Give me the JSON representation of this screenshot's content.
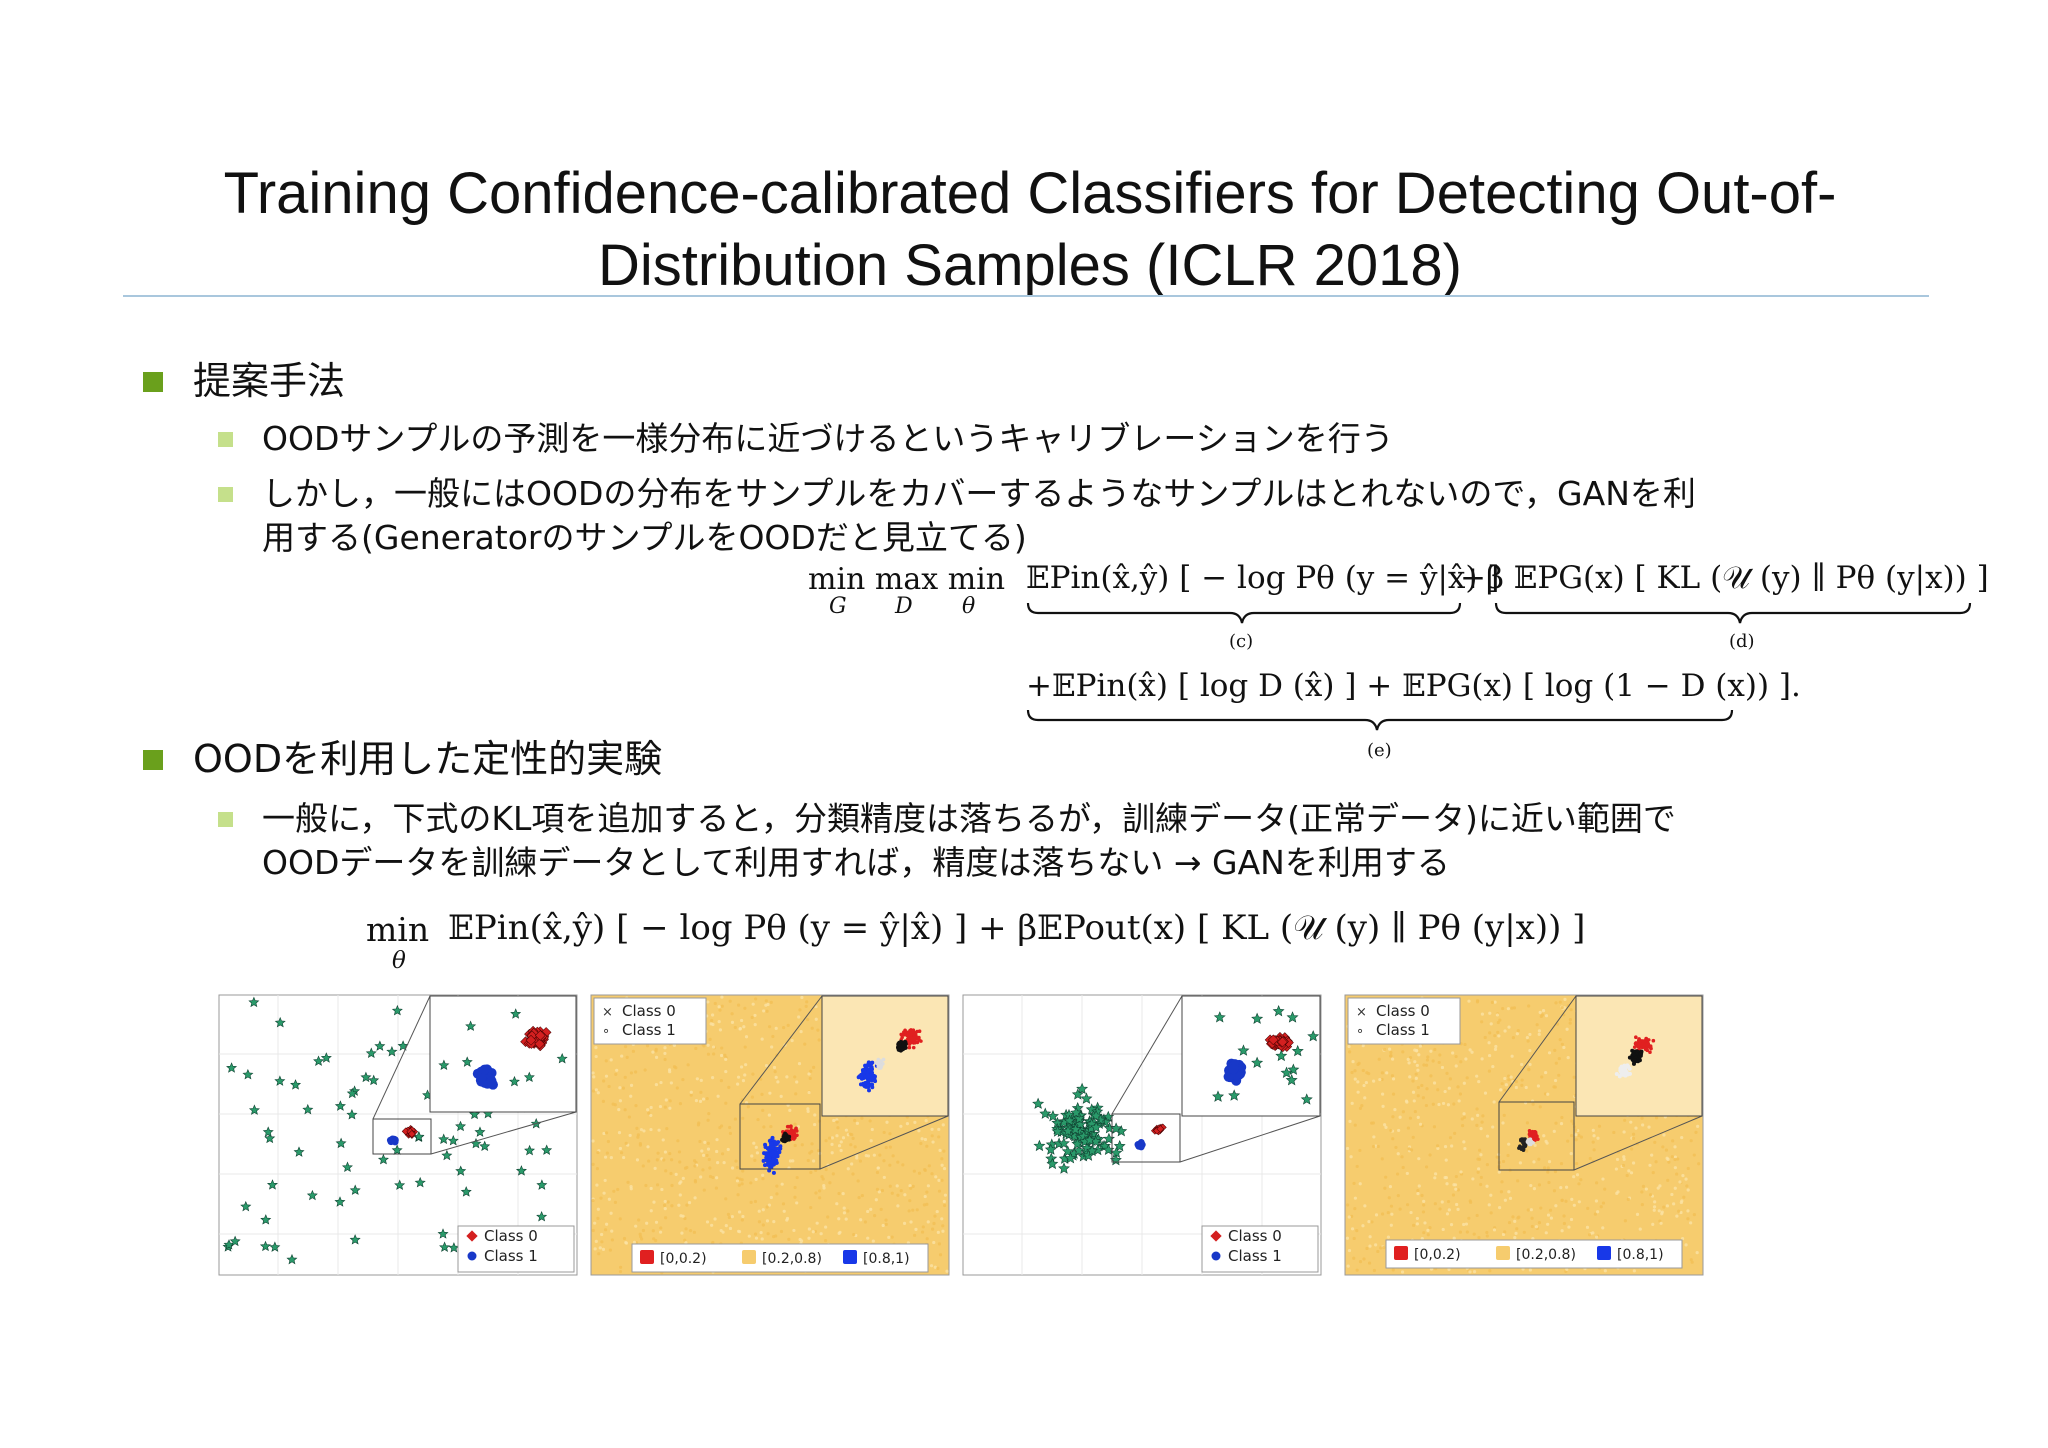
{
  "slide": {
    "title_line1": "Training Confidence-calibrated Classifiers for Detecting Out-of-",
    "title_line2": "Distribution Samples (ICLR 2018)"
  },
  "section1": {
    "heading": "提案手法",
    "items": [
      "OODサンプルの予測を一様分布に近づけるというキャリブレーションを行う",
      "しかし，一般にはOODの分布をサンプルをカバーするようなサンプルはとれないので，GANを利",
      "用する(GeneratorのサンプルをOODだと見立てる)"
    ]
  },
  "equation1": {
    "ops": "min max min",
    "op_subs": [
      "G",
      "D",
      "θ"
    ],
    "term_c": "𝔼Pin(x̂,ŷ) [ − log Pθ (y = ŷ|x̂) ]",
    "term_d": "+β 𝔼PG(x) [ KL (𝒰 (y) ∥ Pθ (y|x)) ]",
    "term_e": "+𝔼Pin(x̂) [ log D (x̂) ] + 𝔼PG(x) [ log (1 − D (x)) ].",
    "label_c": "(c)",
    "label_d": "(d)",
    "label_e": "(e)"
  },
  "section2": {
    "heading": "OODを利用した定性的実験",
    "items": [
      "一般に，下式のKL項を追加すると，分類精度は落ちるが，訓練データ(正常データ)に近い範囲で",
      "OODデータを訓練データとして利用すれば，精度は落ちない → GANを利用する"
    ]
  },
  "equation2": {
    "op": "min",
    "op_sub": "θ",
    "body": "𝔼Pin(x̂,ŷ) [ − log Pθ (y = ŷ|x̂) ] + β𝔼Pout(x) [ KL (𝒰 (y) ∥ Pθ (y|x)) ]"
  },
  "figures": {
    "scatter_legend": [
      "Class 0",
      "Class 1"
    ],
    "confidence_legend_top": [
      "Class 0",
      "Class 1"
    ],
    "confidence_bins": [
      "[0,0.2)",
      "[0.2,0.8)",
      "[0.8,1)"
    ],
    "colors": {
      "class0": "#d42020",
      "class1": "#1838c8",
      "star": "#2a9a6a",
      "conf_mid": "#f6cc6e",
      "conf_low": "#e02020",
      "conf_high": "#1838e8"
    }
  }
}
